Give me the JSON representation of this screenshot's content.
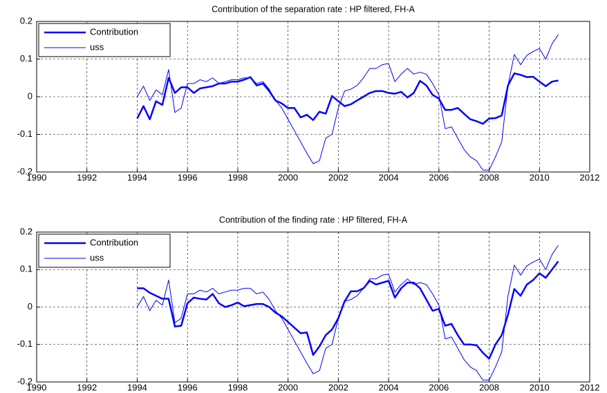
{
  "chart_data": [
    {
      "type": "line",
      "title": "Contribution of the separation rate : HP filtered, FH-A",
      "x": [
        1994,
        1994.25,
        1994.5,
        1994.75,
        1995,
        1995.25,
        1995.5,
        1995.75,
        1996,
        1996.25,
        1996.5,
        1996.75,
        1997,
        1997.25,
        1997.5,
        1997.75,
        1998,
        1998.25,
        1998.5,
        1998.75,
        1999,
        1999.25,
        1999.5,
        1999.75,
        2000,
        2000.25,
        2000.5,
        2000.75,
        2001,
        2001.25,
        2001.5,
        2001.75,
        2002,
        2002.25,
        2002.5,
        2002.75,
        2003,
        2003.25,
        2003.5,
        2003.75,
        2004,
        2004.25,
        2004.5,
        2004.75,
        2005,
        2005.25,
        2005.5,
        2005.75,
        2006,
        2006.25,
        2006.5,
        2006.75,
        2007,
        2007.25,
        2007.5,
        2007.75,
        2008,
        2008.25,
        2008.5,
        2008.75,
        2009,
        2009.25,
        2009.5,
        2009.75,
        2010,
        2010.25,
        2010.5,
        2010.75
      ],
      "series": [
        {
          "name": "Contribution",
          "color": "#0000ff",
          "linewidth": 2.5,
          "values": [
            -0.058,
            -0.025,
            -0.06,
            -0.012,
            -0.022,
            0.05,
            0.01,
            0.025,
            0.025,
            0.01,
            0.022,
            0.025,
            0.028,
            0.035,
            0.035,
            0.04,
            0.04,
            0.045,
            0.052,
            0.03,
            0.035,
            0.015,
            -0.01,
            -0.018,
            -0.03,
            -0.03,
            -0.055,
            -0.048,
            -0.062,
            -0.04,
            -0.045,
            0.002,
            -0.012,
            -0.025,
            -0.02,
            -0.01,
            0.0,
            0.01,
            0.015,
            0.015,
            0.01,
            0.008,
            0.013,
            -0.002,
            0.01,
            0.042,
            0.03,
            0.005,
            -0.005,
            -0.035,
            -0.035,
            -0.03,
            -0.045,
            -0.06,
            -0.065,
            -0.072,
            -0.058,
            -0.057,
            -0.05,
            0.03,
            0.062,
            0.058,
            0.052,
            0.053,
            0.04,
            0.028,
            0.04,
            0.043
          ]
        },
        {
          "name": "uss",
          "color": "#0000ff",
          "linewidth": 1,
          "values": [
            0.0,
            0.028,
            -0.01,
            0.018,
            0.005,
            0.072,
            -0.042,
            -0.03,
            0.035,
            0.035,
            0.045,
            0.04,
            0.05,
            0.035,
            0.04,
            0.045,
            0.045,
            0.05,
            0.05,
            0.035,
            0.04,
            0.02,
            -0.01,
            -0.03,
            -0.06,
            -0.09,
            -0.12,
            -0.15,
            -0.178,
            -0.17,
            -0.11,
            -0.1,
            -0.03,
            0.015,
            0.02,
            0.03,
            0.05,
            0.075,
            0.075,
            0.085,
            0.088,
            0.04,
            0.06,
            0.075,
            0.06,
            0.065,
            0.06,
            0.035,
            0.005,
            -0.085,
            -0.08,
            -0.11,
            -0.14,
            -0.16,
            -0.17,
            -0.195,
            -0.195,
            -0.16,
            -0.12,
            0.03,
            0.112,
            0.085,
            0.11,
            0.12,
            0.128,
            0.1,
            0.14,
            0.165
          ]
        }
      ],
      "xlim": [
        1990,
        2012
      ],
      "xticks": [
        1990,
        1992,
        1994,
        1996,
        1998,
        2000,
        2002,
        2004,
        2006,
        2008,
        2010,
        2012
      ],
      "ylim": [
        -0.2,
        0.2
      ],
      "yticks": [
        -0.2,
        -0.1,
        0,
        0.1,
        0.2
      ],
      "grid": true,
      "legend": "upper left"
    },
    {
      "type": "line",
      "title": "Contribution of the finding rate : HP filtered, FH-A",
      "x": [
        1994,
        1994.25,
        1994.5,
        1994.75,
        1995,
        1995.25,
        1995.5,
        1995.75,
        1996,
        1996.25,
        1996.5,
        1996.75,
        1997,
        1997.25,
        1997.5,
        1997.75,
        1998,
        1998.25,
        1998.5,
        1998.75,
        1999,
        1999.25,
        1999.5,
        1999.75,
        2000,
        2000.25,
        2000.5,
        2000.75,
        2001,
        2001.25,
        2001.5,
        2001.75,
        2002,
        2002.25,
        2002.5,
        2002.75,
        2003,
        2003.25,
        2003.5,
        2003.75,
        2004,
        2004.25,
        2004.5,
        2004.75,
        2005,
        2005.25,
        2005.5,
        2005.75,
        2006,
        2006.25,
        2006.5,
        2006.75,
        2007,
        2007.25,
        2007.5,
        2007.75,
        2008,
        2008.25,
        2008.5,
        2008.75,
        2009,
        2009.25,
        2009.5,
        2009.75,
        2010,
        2010.25,
        2010.5,
        2010.75
      ],
      "series": [
        {
          "name": "Contribution",
          "color": "#0000ff",
          "linewidth": 2.5,
          "values": [
            0.05,
            0.05,
            0.038,
            0.03,
            0.022,
            0.022,
            -0.052,
            -0.05,
            0.01,
            0.025,
            0.022,
            0.02,
            0.035,
            0.01,
            0.0,
            0.005,
            0.012,
            0.002,
            0.005,
            0.008,
            0.008,
            0.0,
            -0.015,
            -0.025,
            -0.04,
            -0.055,
            -0.07,
            -0.068,
            -0.128,
            -0.105,
            -0.075,
            -0.06,
            -0.03,
            0.015,
            0.042,
            0.042,
            0.05,
            0.07,
            0.06,
            0.065,
            0.07,
            0.025,
            0.05,
            0.065,
            0.065,
            0.05,
            0.02,
            -0.01,
            -0.005,
            -0.05,
            -0.045,
            -0.075,
            -0.1,
            -0.1,
            -0.102,
            -0.122,
            -0.138,
            -0.1,
            -0.075,
            -0.02,
            0.048,
            0.03,
            0.06,
            0.072,
            0.09,
            0.078,
            0.1,
            0.122
          ]
        },
        {
          "name": "uss",
          "color": "#0000ff",
          "linewidth": 1,
          "values": [
            0.0,
            0.028,
            -0.01,
            0.018,
            0.005,
            0.072,
            -0.042,
            -0.03,
            0.035,
            0.035,
            0.045,
            0.04,
            0.05,
            0.035,
            0.04,
            0.045,
            0.045,
            0.05,
            0.05,
            0.035,
            0.04,
            0.02,
            -0.01,
            -0.03,
            -0.06,
            -0.09,
            -0.12,
            -0.15,
            -0.178,
            -0.17,
            -0.11,
            -0.1,
            -0.03,
            0.015,
            0.02,
            0.03,
            0.05,
            0.075,
            0.075,
            0.085,
            0.088,
            0.04,
            0.06,
            0.075,
            0.06,
            0.065,
            0.06,
            0.035,
            0.005,
            -0.085,
            -0.08,
            -0.11,
            -0.14,
            -0.16,
            -0.17,
            -0.195,
            -0.195,
            -0.16,
            -0.12,
            0.03,
            0.112,
            0.085,
            0.11,
            0.12,
            0.128,
            0.1,
            0.14,
            0.165
          ]
        }
      ],
      "xlim": [
        1990,
        2012
      ],
      "xticks": [
        1990,
        1992,
        1994,
        1996,
        1998,
        2000,
        2002,
        2004,
        2006,
        2008,
        2010,
        2012
      ],
      "ylim": [
        -0.2,
        0.2
      ],
      "yticks": [
        -0.2,
        -0.1,
        0,
        0.1,
        0.2
      ],
      "grid": true,
      "legend": "upper left"
    }
  ]
}
